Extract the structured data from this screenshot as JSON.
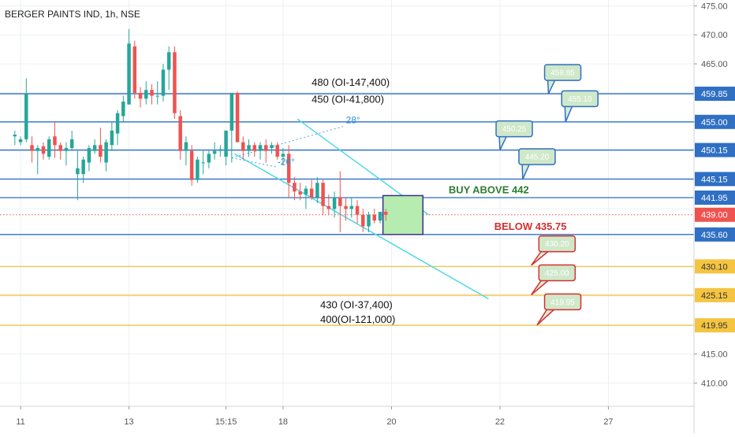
{
  "title": "BERGER PAINTS IND, 1h, NSE",
  "chart_data": {
    "type": "candlestick",
    "symbol": "BERGER PAINTS IND",
    "interval": "1h",
    "exchange": "NSE",
    "ylim": [
      406,
      476
    ],
    "y_ticks": [
      "475.00",
      "470.00",
      "465.00",
      "455.00",
      "415.00",
      "410.00"
    ],
    "x_ticks": [
      {
        "label": "11",
        "x": 1
      },
      {
        "label": "13",
        "x": 20
      },
      {
        "label": "15:15",
        "x": 37
      },
      {
        "label": "18",
        "x": 47
      },
      {
        "label": "20",
        "x": 66
      },
      {
        "label": "22",
        "x": 85
      },
      {
        "label": "27",
        "x": 104
      }
    ],
    "x_range": [
      -2.6,
      119
    ],
    "last_price": "439.00",
    "candles": [
      [
        452.5,
        453.5,
        451.0,
        452.8
      ],
      [
        451.5,
        452.5,
        451.0,
        452.0
      ],
      [
        452.0,
        462.5,
        451.5,
        459.8
      ],
      [
        451.0,
        452.5,
        448.0,
        450.0
      ],
      [
        450.0,
        451.0,
        446.0,
        450.5
      ],
      [
        450.8,
        451.5,
        448.5,
        449.5
      ],
      [
        449.0,
        452.5,
        448.5,
        452.0
      ],
      [
        452.5,
        455.0,
        448.8,
        451.0
      ],
      [
        451.0,
        451.5,
        448.5,
        450.0
      ],
      [
        450.0,
        451.5,
        447.5,
        450.5
      ],
      [
        450.5,
        453.5,
        450.0,
        452.0
      ],
      [
        446.0,
        450.0,
        441.5,
        447.0
      ],
      [
        446.0,
        449.0,
        444.5,
        448.5
      ],
      [
        448.0,
        451.0,
        446.5,
        450.5
      ],
      [
        450.0,
        452.0,
        449.5,
        451.0
      ],
      [
        451.0,
        454.0,
        448.0,
        449.0
      ],
      [
        448.0,
        452.0,
        446.5,
        451.5
      ],
      [
        451.0,
        455.0,
        450.0,
        453.5
      ],
      [
        453.0,
        457.0,
        451.0,
        456.5
      ],
      [
        456.0,
        459.5,
        455.0,
        458.5
      ],
      [
        458.0,
        471.0,
        458.0,
        468.5
      ],
      [
        468.0,
        469.0,
        459.0,
        460.0
      ],
      [
        460.0,
        461.0,
        457.5,
        459.0
      ],
      [
        459.0,
        462.0,
        458.0,
        460.5
      ],
      [
        460.5,
        461.5,
        458.0,
        459.5
      ],
      [
        459.5,
        462.0,
        458.0,
        459.5
      ],
      [
        459.5,
        465.0,
        458.5,
        464.0
      ],
      [
        464.0,
        468.0,
        460.5,
        467.0
      ],
      [
        467.0,
        468.0,
        455.5,
        456.5
      ],
      [
        456.0,
        457.0,
        448.5,
        450.0
      ],
      [
        450.0,
        452.5,
        447.5,
        451.5
      ],
      [
        450.0,
        451.0,
        444.0,
        445.0
      ],
      [
        445.0,
        449.0,
        444.5,
        448.5
      ],
      [
        448.0,
        450.0,
        446.0,
        448.0
      ],
      [
        448.0,
        450.0,
        447.0,
        449.5
      ],
      [
        449.5,
        451.5,
        448.5,
        450.0
      ],
      [
        450.0,
        451.0,
        449.0,
        450.3
      ],
      [
        449.0,
        453.5,
        447.5,
        453.5
      ],
      [
        453.5,
        460.0,
        448.0,
        460.0
      ],
      [
        460.0,
        460.2,
        451.5,
        451.5
      ],
      [
        451.5,
        452.5,
        448.5,
        450.0
      ],
      [
        450.0,
        452.0,
        449.0,
        451.0
      ],
      [
        451.0,
        451.5,
        449.0,
        450.0
      ],
      [
        450.0,
        451.5,
        448.5,
        451.0
      ],
      [
        451.0,
        452.0,
        448.0,
        450.0
      ],
      [
        450.5,
        451.5,
        449.5,
        451.0
      ],
      [
        451.0,
        451.5,
        448.5,
        449.0
      ],
      [
        449.0,
        450.5,
        447.5,
        449.5
      ],
      [
        449.5,
        451.0,
        442.0,
        444.5
      ],
      [
        444.5,
        445.5,
        441.5,
        443.0
      ],
      [
        443.0,
        444.5,
        441.5,
        442.5
      ],
      [
        442.5,
        444.0,
        440.0,
        443.5
      ],
      [
        443.5,
        445.0,
        441.5,
        442.0
      ],
      [
        442.0,
        445.5,
        441.0,
        444.5
      ],
      [
        444.5,
        445.0,
        439.0,
        440.5
      ],
      [
        440.5,
        442.5,
        439.0,
        440.0
      ],
      [
        440.0,
        443.0,
        438.5,
        442.0
      ],
      [
        442.0,
        446.5,
        436.0,
        440.5
      ],
      [
        440.5,
        442.0,
        438.0,
        440.0
      ],
      [
        440.0,
        442.0,
        438.5,
        440.5
      ],
      [
        440.5,
        441.5,
        437.5,
        439.0
      ],
      [
        439.0,
        440.0,
        436.0,
        437.0
      ],
      [
        437.0,
        439.5,
        436.0,
        439.0
      ],
      [
        439.0,
        440.0,
        437.5,
        438.0
      ],
      [
        438.0,
        439.5,
        437.5,
        439.5
      ],
      [
        439.5,
        440.0,
        438.0,
        439.0
      ]
    ],
    "levels": [
      {
        "value": 459.85,
        "label": "459.85",
        "color": "#2f6fc4",
        "tag_color": "#2f6fc4",
        "tag_text": "#ffffff"
      },
      {
        "value": 455.0,
        "label": "455.00",
        "color": "#2f6fc4",
        "tag_color": "#2f6fc4",
        "tag_text": "#ffffff"
      },
      {
        "value": 450.15,
        "label": "450.15",
        "color": "#2f6fc4",
        "tag_color": "#2f6fc4",
        "tag_text": "#ffffff"
      },
      {
        "value": 445.15,
        "label": "445.15",
        "color": "#2f6fc4",
        "tag_color": "#2f6fc4",
        "tag_text": "#ffffff"
      },
      {
        "value": 441.95,
        "label": "441.95",
        "color": "#2f6fc4",
        "tag_color": "#2f6fc4",
        "tag_text": "#ffffff"
      },
      {
        "value": 439.0,
        "label": "439.00",
        "color": "#ef5350",
        "tag_color": "#ef5350",
        "tag_text": "#ffffff",
        "dotted": true
      },
      {
        "value": 435.6,
        "label": "435.60",
        "color": "#2f6fc4",
        "tag_color": "#2f6fc4",
        "tag_text": "#ffffff"
      },
      {
        "value": 430.1,
        "label": "430.10",
        "color": "#f5c542",
        "tag_color": "#f5c542",
        "tag_text": "#333333"
      },
      {
        "value": 425.15,
        "label": "425.15",
        "color": "#f5c542",
        "tag_color": "#f5c542",
        "tag_text": "#333333"
      },
      {
        "value": 419.95,
        "label": "419.95",
        "color": "#f5c542",
        "tag_color": "#f5c542",
        "tag_text": "#333333"
      }
    ],
    "callouts": [
      {
        "text": "459.85",
        "x": 96,
        "y": 463.5,
        "tip_x": 93.5,
        "tip_y": 459.85,
        "border": "#2f6fc4"
      },
      {
        "text": "455.10",
        "x": 99,
        "y": 459,
        "tip_x": 96.5,
        "tip_y": 455.0,
        "border": "#2f6fc4"
      },
      {
        "text": "450.25",
        "x": 87.5,
        "y": 453.8,
        "tip_x": 85,
        "tip_y": 450.15,
        "border": "#2f6fc4"
      },
      {
        "text": "445.20",
        "x": 91.5,
        "y": 449.0,
        "tip_x": 89,
        "tip_y": 445.15,
        "border": "#2f6fc4"
      },
      {
        "text": "430.20",
        "x": 95,
        "y": 434.0,
        "tip_x": 90.5,
        "tip_y": 430.3,
        "border": "#d32f2f"
      },
      {
        "text": "425.00",
        "x": 95,
        "y": 429.0,
        "tip_x": 90.5,
        "tip_y": 425.2,
        "border": "#d32f2f"
      },
      {
        "text": "419.95",
        "x": 96,
        "y": 424.0,
        "tip_x": 91.5,
        "tip_y": 420.0,
        "border": "#d32f2f"
      }
    ],
    "annotations": [
      {
        "text": "480 (OI-147,400)",
        "x": 52,
        "y": 461.2,
        "color": "#111111"
      },
      {
        "text": "450 (OI-41,800)",
        "x": 52,
        "y": 458.3,
        "color": "#111111"
      },
      {
        "text": "BUY ABOVE 442",
        "x": 76,
        "y": 442.7,
        "color": "#2e7d32"
      },
      {
        "text": "BELOW 435.75",
        "x": 84,
        "y": 436.4,
        "color": "#d32f2f"
      },
      {
        "text": "430 (OI-37,400)",
        "x": 53.5,
        "y": 422.9,
        "color": "#111111"
      },
      {
        "text": "400(OI-121,000)",
        "x": 53.5,
        "y": 420.4,
        "color": "#111111"
      },
      {
        "text": "28°",
        "x": 58,
        "y": 454.8,
        "color": "#2f8fd8"
      },
      {
        "text": "-26°",
        "x": 46,
        "y": 447.6,
        "color": "#2f8fd8"
      }
    ],
    "channel": {
      "upper": [
        [
          49.5,
          455.5
        ],
        [
          72.5,
          439.0
        ]
      ],
      "lower": [
        [
          38.5,
          449.5
        ],
        [
          83,
          424.5
        ]
      ],
      "color": "#4dd9e6"
    },
    "angle_lines": [
      {
        "from": [
          38,
          448.8
        ],
        "to": [
          46,
          447.2
        ]
      },
      {
        "from": [
          38,
          448.8
        ],
        "to": [
          57.5,
          454.2
        ]
      }
    ],
    "box": {
      "x0": 64.5,
      "x1": 71.5,
      "y0": 435.6,
      "y1": 442.3,
      "fill": "#b6ecb0",
      "border": "#3a2f8f"
    },
    "colors": {
      "up": "#26a69a",
      "down": "#ef5350",
      "grid": "#ecf0f3",
      "axis": "#555555"
    }
  }
}
